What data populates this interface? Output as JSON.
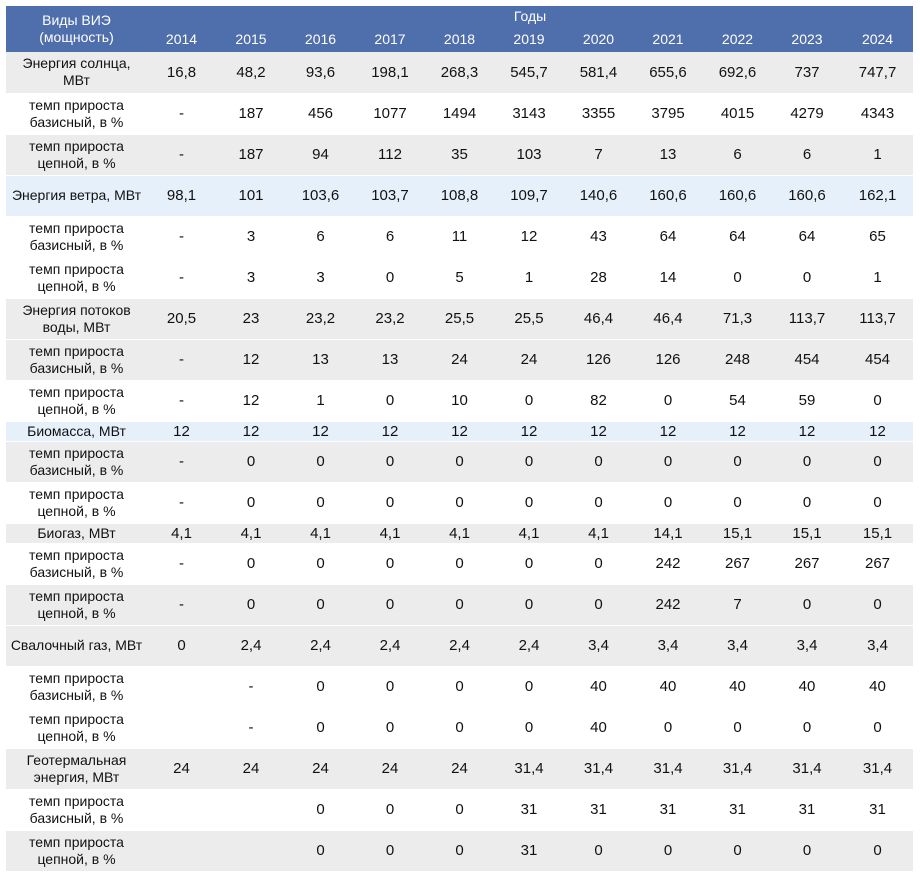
{
  "header": {
    "type_label": "Виды ВИЭ\n(мощность)",
    "years_title": "Годы",
    "years": [
      "2014",
      "2015",
      "2016",
      "2017",
      "2018",
      "2019",
      "2020",
      "2021",
      "2022",
      "2023",
      "2024"
    ]
  },
  "colors": {
    "header_bg": "#4f6eac",
    "header_text": "#ffffff",
    "row_gray": "#ececec",
    "row_blue": "#e6f0fa"
  },
  "rows": [
    {
      "label": "Энергия солнца, МВт",
      "values": [
        "16,8",
        "48,2",
        "93,6",
        "198,1",
        "268,3",
        "545,7",
        "581,4",
        "655,6",
        "692,6",
        "737",
        "747,7"
      ],
      "kind": "main",
      "bg": "gray"
    },
    {
      "label": "темп прироста базисный, в %",
      "values": [
        "-",
        "187",
        "456",
        "1077",
        "1494",
        "3143",
        "3355",
        "3795",
        "4015",
        "4279",
        "4343"
      ],
      "kind": "rate",
      "bg": "white"
    },
    {
      "label": "темп прироста цепной, в %",
      "values": [
        "-",
        "187",
        "94",
        "112",
        "35",
        "103",
        "7",
        "13",
        "6",
        "6",
        "1"
      ],
      "kind": "rate",
      "bg": "gray"
    },
    {
      "label": "Энергия ветра, МВт",
      "values": [
        "98,1",
        "101",
        "103,6",
        "103,7",
        "108,8",
        "109,7",
        "140,6",
        "160,6",
        "160,6",
        "160,6",
        "162,1"
      ],
      "kind": "main",
      "bg": "blue"
    },
    {
      "label": "темп прироста базисный, в %",
      "values": [
        "-",
        "3",
        "6",
        "6",
        "11",
        "12",
        "43",
        "64",
        "64",
        "64",
        "65"
      ],
      "kind": "rate",
      "bg": "white"
    },
    {
      "label": "темп прироста цепной, в %",
      "values": [
        "-",
        "3",
        "3",
        "0",
        "5",
        "1",
        "28",
        "14",
        "0",
        "0",
        "1"
      ],
      "kind": "rate",
      "bg": "white"
    },
    {
      "label": "Энергия потоков воды, МВт",
      "values": [
        "20,5",
        "23",
        "23,2",
        "23,2",
        "25,5",
        "25,5",
        "46,4",
        "46,4",
        "71,3",
        "113,7",
        "113,7"
      ],
      "kind": "main",
      "bg": "gray"
    },
    {
      "label": "темп прироста базисный, в %",
      "values": [
        "-",
        "12",
        "13",
        "13",
        "24",
        "24",
        "126",
        "126",
        "248",
        "454",
        "454"
      ],
      "kind": "rate",
      "bg": "gray"
    },
    {
      "label": "темп прироста цепной, в %",
      "values": [
        "-",
        "12",
        "1",
        "0",
        "10",
        "0",
        "82",
        "0",
        "54",
        "59",
        "0"
      ],
      "kind": "rate",
      "bg": "white"
    },
    {
      "label": "Биомасса, МВт",
      "values": [
        "12",
        "12",
        "12",
        "12",
        "12",
        "12",
        "12",
        "12",
        "12",
        "12",
        "12"
      ],
      "kind": "main",
      "bg": "blue"
    },
    {
      "label": "темп прироста базисный, в %",
      "values": [
        "-",
        "0",
        "0",
        "0",
        "0",
        "0",
        "0",
        "0",
        "0",
        "0",
        "0"
      ],
      "kind": "rate",
      "bg": "gray"
    },
    {
      "label": "темп прироста цепной, в %",
      "values": [
        "-",
        "0",
        "0",
        "0",
        "0",
        "0",
        "0",
        "0",
        "0",
        "0",
        "0"
      ],
      "kind": "rate",
      "bg": "white"
    },
    {
      "label": "Биогаз, МВт",
      "values": [
        "4,1",
        "4,1",
        "4,1",
        "4,1",
        "4,1",
        "4,1",
        "4,1",
        "14,1",
        "15,1",
        "15,1",
        "15,1"
      ],
      "kind": "main",
      "bg": "gray"
    },
    {
      "label": "темп прироста базисный, в %",
      "values": [
        "-",
        "0",
        "0",
        "0",
        "0",
        "0",
        "0",
        "242",
        "267",
        "267",
        "267"
      ],
      "kind": "rate",
      "bg": "white"
    },
    {
      "label": "темп прироста цепной, в %",
      "values": [
        "-",
        "0",
        "0",
        "0",
        "0",
        "0",
        "0",
        "242",
        "7",
        "0",
        "0"
      ],
      "kind": "rate",
      "bg": "gray"
    },
    {
      "label": "Свалочный газ, МВт",
      "values": [
        "0",
        "2,4",
        "2,4",
        "2,4",
        "2,4",
        "2,4",
        "3,4",
        "3,4",
        "3,4",
        "3,4",
        "3,4"
      ],
      "kind": "main",
      "bg": "gray"
    },
    {
      "label": "темп прироста базисный, в %",
      "values": [
        "",
        "-",
        "0",
        "0",
        "0",
        "0",
        "40",
        "40",
        "40",
        "40",
        "40"
      ],
      "kind": "rate",
      "bg": "white"
    },
    {
      "label": "темп прироста цепной, в %",
      "values": [
        "",
        "-",
        "0",
        "0",
        "0",
        "0",
        "40",
        "0",
        "0",
        "0",
        "0"
      ],
      "kind": "rate",
      "bg": "white"
    },
    {
      "label": "Геотермальная энергия, МВт",
      "values": [
        "24",
        "24",
        "24",
        "24",
        "24",
        "31,4",
        "31,4",
        "31,4",
        "31,4",
        "31,4",
        "31,4"
      ],
      "kind": "main",
      "bg": "gray"
    },
    {
      "label": "темп прироста базисный, в %",
      "values": [
        "",
        "",
        "0",
        "0",
        "0",
        "31",
        "31",
        "31",
        "31",
        "31",
        "31"
      ],
      "kind": "rate",
      "bg": "white"
    },
    {
      "label": "темп прироста цепной, в %",
      "values": [
        "",
        "",
        "0",
        "0",
        "0",
        "31",
        "0",
        "0",
        "0",
        "0",
        "0"
      ],
      "kind": "rate",
      "bg": "gray"
    }
  ]
}
